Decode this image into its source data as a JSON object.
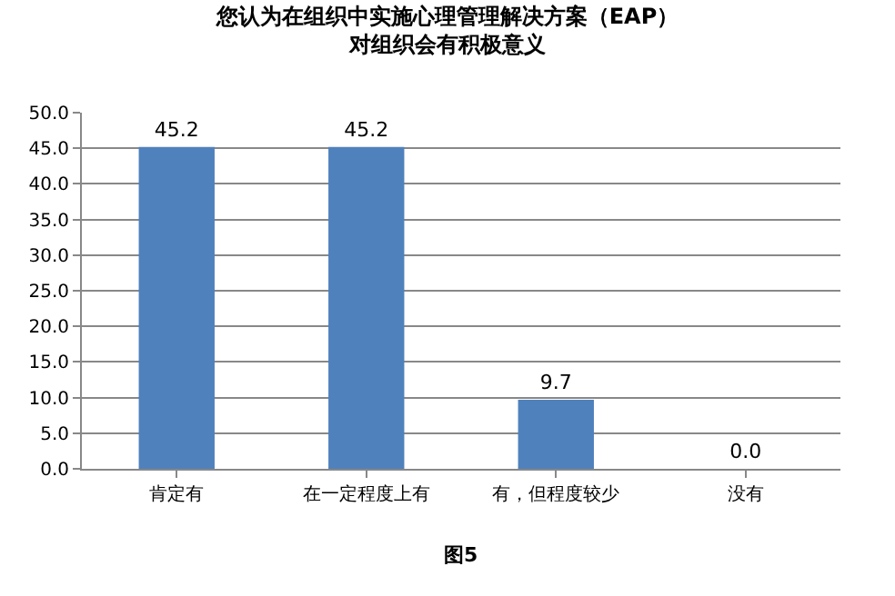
{
  "chart_data": {
    "type": "bar",
    "title": "您认为在组织中实施心理管理解决方案（EAP）",
    "subtitle": "对组织会有积极意义",
    "categories": [
      "肯定有",
      "在一定程度上有",
      "有，但程度较少",
      "没有"
    ],
    "values": [
      45.2,
      45.2,
      9.7,
      0.0
    ],
    "color": "#4f81bd",
    "ylim": [
      0,
      50
    ],
    "yticks": [
      {
        "value": 0,
        "label": "0.0"
      },
      {
        "value": 5,
        "label": "5.0"
      },
      {
        "value": 10,
        "label": "10.0"
      },
      {
        "value": 15,
        "label": "15.0"
      },
      {
        "value": 20,
        "label": "20.0"
      },
      {
        "value": 25,
        "label": "25.0"
      },
      {
        "value": 30,
        "label": "30.0"
      },
      {
        "value": 35,
        "label": "35.0"
      },
      {
        "value": 40,
        "label": "40.0"
      },
      {
        "value": 45,
        "label": "45.0"
      },
      {
        "value": 50,
        "label": "50.0"
      }
    ],
    "value_labels": [
      "45.2",
      "45.2",
      "9.7",
      "0.0"
    ],
    "grid": "y",
    "legend": false,
    "annotations": [
      "图5"
    ]
  }
}
